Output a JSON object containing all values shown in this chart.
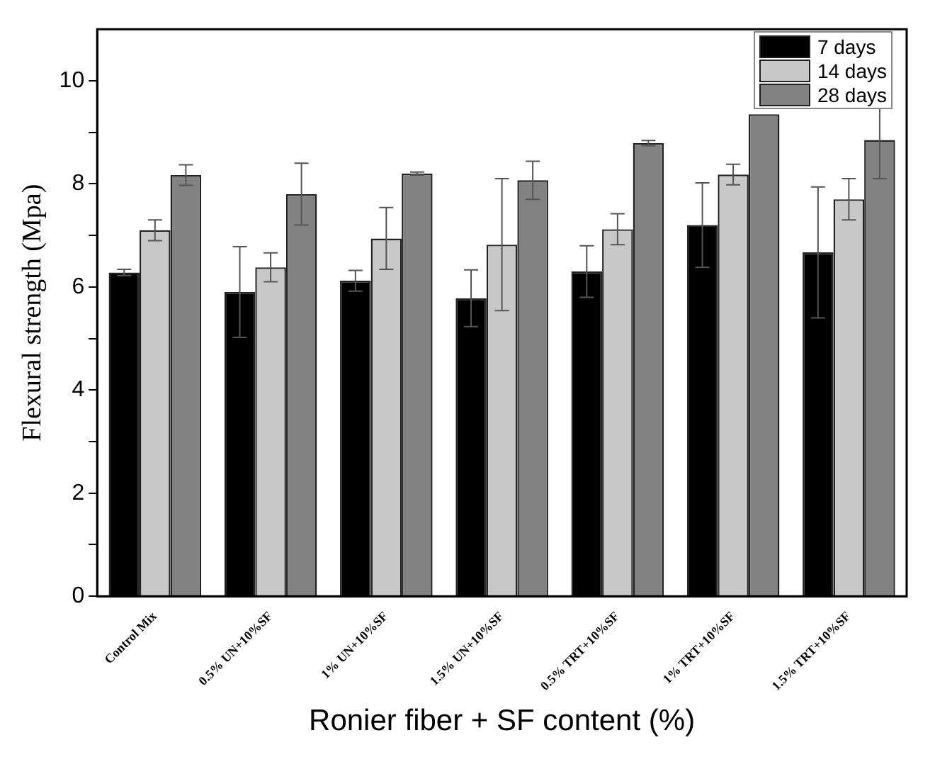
{
  "chart_data": {
    "type": "bar",
    "xlabel": "Ronier fiber + SF content (%)",
    "ylabel": "Flexural strength (Mpa)",
    "categories": [
      "Control Mix",
      "0.5% UN+10%SF",
      "1% UN+10%SF",
      "1.5% UN+10%SF",
      "0.5% TRT+10%SF",
      "1% TRT+10%SF",
      "1.5% TRT+10%SF"
    ],
    "series": [
      {
        "name": "7 days",
        "color": "#000000",
        "values": [
          6.28,
          5.9,
          6.12,
          5.78,
          6.3,
          7.2,
          6.67
        ],
        "errors": [
          0.06,
          0.88,
          0.2,
          0.55,
          0.5,
          0.82,
          1.27
        ]
      },
      {
        "name": "14 days",
        "color": "#c8c8c8",
        "values": [
          7.1,
          6.38,
          6.94,
          6.82,
          7.12,
          8.18,
          7.7
        ],
        "errors": [
          0.2,
          0.28,
          0.6,
          1.28,
          0.3,
          0.2,
          0.4
        ]
      },
      {
        "name": "28 days",
        "color": "#828282",
        "values": [
          8.17,
          7.8,
          8.2,
          8.07,
          8.79,
          9.35,
          8.85
        ],
        "errors": [
          0.2,
          0.6,
          0.03,
          0.37,
          0.05,
          null,
          0.75
        ]
      }
    ],
    "ylim": [
      0,
      11
    ],
    "yticks": [
      0,
      {
        "value": 1,
        "label": null
      },
      2,
      {
        "value": 3,
        "label": null
      },
      4,
      {
        "value": 5,
        "label": null
      },
      6,
      {
        "value": 7,
        "label": null
      },
      8,
      {
        "value": 9,
        "label": null
      },
      10
    ],
    "grid": false,
    "legend": "top right"
  }
}
